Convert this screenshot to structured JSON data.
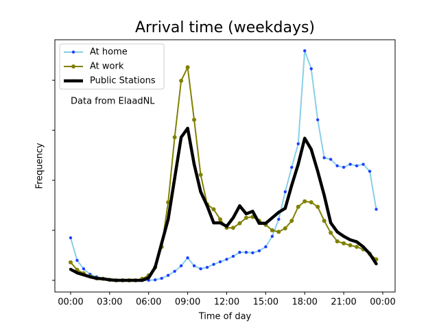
{
  "chart_data": {
    "type": "line",
    "title": "Arrival time (weekdays)",
    "xlabel": "Time of day",
    "ylabel": "Frequency",
    "annotation": "Data from ElaadNL",
    "legend": "upper left",
    "x": [
      0,
      0.5,
      1,
      1.5,
      2,
      2.5,
      3,
      3.5,
      4,
      4.5,
      5,
      5.5,
      6,
      6.5,
      7,
      7.5,
      8,
      8.5,
      9,
      9.5,
      10,
      10.5,
      11,
      11.5,
      12,
      12.5,
      13,
      13.5,
      14,
      14.5,
      15,
      15.5,
      16,
      16.5,
      17,
      17.5,
      18,
      18.5,
      19,
      19.5,
      20,
      20.5,
      21,
      21.5,
      22,
      22.5,
      23,
      23.5
    ],
    "series": [
      {
        "name": "At home",
        "color": "#87ceeb",
        "marker_color": "#1f3fff",
        "linewidth": 2,
        "values": [
          0.85,
          0.4,
          0.23,
          0.12,
          0.07,
          0.04,
          0.01,
          0,
          0,
          0,
          0,
          0,
          0,
          0.01,
          0.04,
          0.1,
          0.18,
          0.29,
          0.45,
          0.29,
          0.23,
          0.26,
          0.32,
          0.37,
          0.42,
          0.48,
          0.56,
          0.56,
          0.55,
          0.59,
          0.67,
          0.88,
          1.22,
          1.77,
          2.26,
          2.73,
          4.59,
          4.23,
          3.21,
          2.45,
          2.42,
          2.29,
          2.26,
          2.32,
          2.29,
          2.32,
          2.18,
          1.42
        ]
      },
      {
        "name": "At work",
        "color": "#808000",
        "marker_color": "#808000",
        "linewidth": 2,
        "values": [
          0.36,
          0.21,
          0.14,
          0.08,
          0.04,
          0.03,
          0.01,
          0,
          0,
          0,
          0,
          0.03,
          0.1,
          0.26,
          0.67,
          1.56,
          2.86,
          3.99,
          4.26,
          3.21,
          2.11,
          1.52,
          1.42,
          1.22,
          1.05,
          1.05,
          1.14,
          1.25,
          1.27,
          1.19,
          1.11,
          1.0,
          0.97,
          1.04,
          1.19,
          1.47,
          1.58,
          1.56,
          1.47,
          1.19,
          0.95,
          0.78,
          0.74,
          0.7,
          0.67,
          0.62,
          0.53,
          0.42
        ]
      },
      {
        "name": "Public Stations",
        "color": "#000000",
        "marker_color": "#000000",
        "linewidth": 4.5,
        "values": [
          0.22,
          0.15,
          0.11,
          0.07,
          0.04,
          0.03,
          0.01,
          0,
          0,
          0,
          0,
          0,
          0.05,
          0.26,
          0.74,
          1.22,
          2.04,
          2.86,
          3.04,
          2.32,
          1.77,
          1.49,
          1.15,
          1.15,
          1.08,
          1.25,
          1.49,
          1.33,
          1.38,
          1.14,
          1.14,
          1.25,
          1.36,
          1.44,
          1.9,
          2.32,
          2.84,
          2.62,
          2.18,
          1.7,
          1.15,
          0.97,
          0.88,
          0.81,
          0.77,
          0.67,
          0.53,
          0.33
        ]
      }
    ],
    "xlim": [
      -1.21,
      24.95
    ],
    "xticks": [
      {
        "value": 0,
        "label": "00:00"
      },
      {
        "value": 3,
        "label": "03:00"
      },
      {
        "value": 6,
        "label": "06:00"
      },
      {
        "value": 9,
        "label": "09:00"
      },
      {
        "value": 12,
        "label": "12:00"
      },
      {
        "value": 15,
        "label": "15:00"
      },
      {
        "value": 18,
        "label": "18:00"
      },
      {
        "value": 21,
        "label": "21:00"
      },
      {
        "value": 24,
        "label": "00:00"
      }
    ],
    "ylim": [
      -0.233,
      4.81
    ],
    "yticks": [
      0,
      1,
      2,
      3,
      4
    ]
  }
}
